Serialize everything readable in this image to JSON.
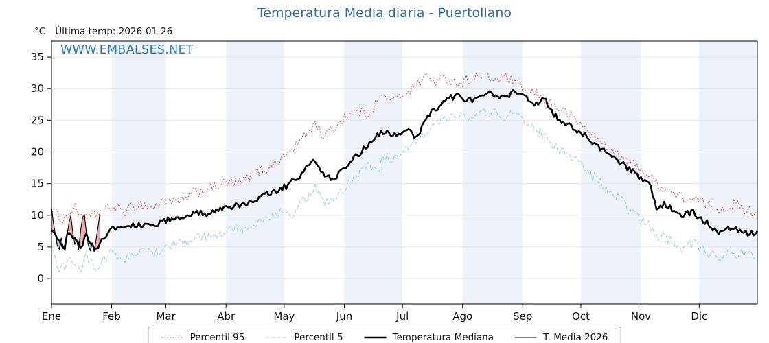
{
  "header": {
    "title": "Temperatura Media diaria - Puertollano",
    "unit_label": "°C",
    "last_temp_label": "Última temp: 2026-01-26",
    "watermark": "WWW.EMBALSES.NET"
  },
  "colors": {
    "title": "#2f6fa7",
    "watermark": "#2d7fc0",
    "band": "#edf3f9",
    "grid": "#e6e6e6",
    "axis": "#000000",
    "anomaly_above": "#e89999",
    "anomaly_below": "#9dbfdc"
  },
  "legend": {
    "items": [
      {
        "label": "Percentil 95"
      },
      {
        "label": "Percentil 5"
      },
      {
        "label": "Temperatura Mediana"
      },
      {
        "label": "T. Media 2026"
      }
    ]
  },
  "chart_data": {
    "type": "line",
    "title": "Temperatura Media diaria - Puertollano",
    "xlabel": "",
    "ylabel": "°C",
    "ylim": [
      -4,
      37.5
    ],
    "yticks": [
      0,
      5,
      10,
      15,
      20,
      25,
      30,
      35
    ],
    "x_months": [
      "Ene",
      "Feb",
      "Mar",
      "Abr",
      "May",
      "Jun",
      "Jul",
      "Ago",
      "Sep",
      "Oct",
      "Nov",
      "Dic"
    ],
    "month_start_days": [
      0,
      31,
      59,
      90,
      120,
      151,
      181,
      212,
      243,
      273,
      304,
      334
    ],
    "legend_position": "bottom",
    "grid": true,
    "series": [
      {
        "name": "Percentil 95",
        "color": "#d64545",
        "style": "dotted",
        "width": 1.1,
        "jitter": 0.85,
        "points": [
          [
            0,
            10.8
          ],
          [
            6,
            9.4
          ],
          [
            12,
            11.0
          ],
          [
            18,
            9.6
          ],
          [
            24,
            10.2
          ],
          [
            31,
            11.3
          ],
          [
            38,
            10.6
          ],
          [
            45,
            11.8
          ],
          [
            52,
            11.2
          ],
          [
            59,
            12.4
          ],
          [
            66,
            12.0
          ],
          [
            74,
            13.6
          ],
          [
            82,
            14.2
          ],
          [
            90,
            15.2
          ],
          [
            97,
            15.0
          ],
          [
            105,
            16.8
          ],
          [
            112,
            17.5
          ],
          [
            120,
            19.3
          ],
          [
            126,
            21.0
          ],
          [
            132,
            23.0
          ],
          [
            136,
            24.6
          ],
          [
            140,
            22.5
          ],
          [
            145,
            23.5
          ],
          [
            151,
            25.6
          ],
          [
            157,
            26.5
          ],
          [
            163,
            26.0
          ],
          [
            170,
            28.8
          ],
          [
            176,
            28.0
          ],
          [
            181,
            29.2
          ],
          [
            187,
            30.2
          ],
          [
            193,
            32.0
          ],
          [
            198,
            31.0
          ],
          [
            204,
            31.6
          ],
          [
            210,
            30.8
          ],
          [
            216,
            31.6
          ],
          [
            222,
            32.0
          ],
          [
            228,
            31.4
          ],
          [
            234,
            31.8
          ],
          [
            240,
            30.6
          ],
          [
            246,
            29.6
          ],
          [
            252,
            28.8
          ],
          [
            258,
            27.6
          ],
          [
            265,
            26.2
          ],
          [
            273,
            24.4
          ],
          [
            280,
            22.4
          ],
          [
            287,
            20.6
          ],
          [
            295,
            18.8
          ],
          [
            304,
            17.4
          ],
          [
            310,
            15.6
          ],
          [
            316,
            14.4
          ],
          [
            322,
            13.2
          ],
          [
            328,
            12.6
          ],
          [
            334,
            12.2
          ],
          [
            340,
            11.4
          ],
          [
            346,
            11.0
          ],
          [
            352,
            11.8
          ],
          [
            358,
            10.8
          ],
          [
            364,
            10.4
          ]
        ]
      },
      {
        "name": "Percentil 5",
        "color": "#a3cfe3",
        "style": "dashed",
        "width": 1.1,
        "jitter": 0.85,
        "points": [
          [
            0,
            4.6
          ],
          [
            3,
            2.0
          ],
          [
            6,
            1.2
          ],
          [
            9,
            3.4
          ],
          [
            12,
            2.4
          ],
          [
            15,
            1.4
          ],
          [
            18,
            3.6
          ],
          [
            21,
            2.2
          ],
          [
            24,
            1.8
          ],
          [
            27,
            3.2
          ],
          [
            31,
            4.0
          ],
          [
            38,
            3.0
          ],
          [
            45,
            4.4
          ],
          [
            52,
            4.0
          ],
          [
            59,
            5.0
          ],
          [
            66,
            5.6
          ],
          [
            74,
            6.2
          ],
          [
            82,
            6.6
          ],
          [
            90,
            7.0
          ],
          [
            95,
            8.4
          ],
          [
            100,
            7.4
          ],
          [
            105,
            8.8
          ],
          [
            112,
            9.6
          ],
          [
            118,
            10.4
          ],
          [
            124,
            9.8
          ],
          [
            130,
            12.4
          ],
          [
            136,
            14.4
          ],
          [
            141,
            12.0
          ],
          [
            147,
            13.0
          ],
          [
            151,
            14.2
          ],
          [
            157,
            16.2
          ],
          [
            163,
            18.2
          ],
          [
            168,
            17.4
          ],
          [
            173,
            19.2
          ],
          [
            178,
            18.6
          ],
          [
            183,
            20.2
          ],
          [
            188,
            21.8
          ],
          [
            193,
            23.4
          ],
          [
            198,
            24.6
          ],
          [
            204,
            25.4
          ],
          [
            210,
            26.2
          ],
          [
            215,
            25.0
          ],
          [
            220,
            25.8
          ],
          [
            226,
            26.4
          ],
          [
            232,
            25.6
          ],
          [
            238,
            26.0
          ],
          [
            243,
            25.2
          ],
          [
            249,
            23.6
          ],
          [
            254,
            22.6
          ],
          [
            259,
            21.0
          ],
          [
            265,
            19.6
          ],
          [
            273,
            18.0
          ],
          [
            280,
            16.0
          ],
          [
            287,
            13.6
          ],
          [
            295,
            12.0
          ],
          [
            300,
            10.2
          ],
          [
            304,
            9.2
          ],
          [
            308,
            8.4
          ],
          [
            312,
            6.4
          ],
          [
            316,
            6.8
          ],
          [
            321,
            5.4
          ],
          [
            326,
            4.8
          ],
          [
            331,
            5.6
          ],
          [
            334,
            4.8
          ],
          [
            339,
            4.0
          ],
          [
            344,
            3.2
          ],
          [
            349,
            4.4
          ],
          [
            354,
            3.6
          ],
          [
            359,
            4.6
          ],
          [
            364,
            3.2
          ]
        ]
      },
      {
        "name": "Temperatura Mediana",
        "color": "#000000",
        "style": "solid",
        "width": 2.6,
        "jitter": 0.5,
        "points": [
          [
            0,
            7.8
          ],
          [
            3,
            6.0
          ],
          [
            6,
            5.0
          ],
          [
            9,
            7.2
          ],
          [
            12,
            6.2
          ],
          [
            15,
            4.6
          ],
          [
            18,
            7.0
          ],
          [
            21,
            5.2
          ],
          [
            24,
            4.4
          ],
          [
            27,
            6.6
          ],
          [
            31,
            7.9
          ],
          [
            38,
            8.2
          ],
          [
            45,
            8.6
          ],
          [
            52,
            8.4
          ],
          [
            59,
            9.2
          ],
          [
            66,
            9.8
          ],
          [
            74,
            10.3
          ],
          [
            82,
            10.2
          ],
          [
            90,
            11.0
          ],
          [
            97,
            11.6
          ],
          [
            105,
            12.6
          ],
          [
            112,
            13.4
          ],
          [
            120,
            14.4
          ],
          [
            126,
            15.6
          ],
          [
            132,
            17.6
          ],
          [
            136,
            18.8
          ],
          [
            140,
            16.4
          ],
          [
            145,
            15.6
          ],
          [
            151,
            17.4
          ],
          [
            157,
            19.2
          ],
          [
            163,
            21.0
          ],
          [
            168,
            22.6
          ],
          [
            173,
            23.4
          ],
          [
            178,
            22.4
          ],
          [
            183,
            23.8
          ],
          [
            188,
            22.0
          ],
          [
            193,
            25.2
          ],
          [
            198,
            26.8
          ],
          [
            204,
            28.4
          ],
          [
            210,
            29.0
          ],
          [
            215,
            28.0
          ],
          [
            220,
            28.8
          ],
          [
            226,
            29.2
          ],
          [
            232,
            28.6
          ],
          [
            238,
            29.4
          ],
          [
            243,
            28.8
          ],
          [
            249,
            27.6
          ],
          [
            254,
            28.4
          ],
          [
            259,
            26.0
          ],
          [
            265,
            24.4
          ],
          [
            273,
            23.0
          ],
          [
            280,
            21.4
          ],
          [
            287,
            19.8
          ],
          [
            295,
            18.0
          ],
          [
            300,
            16.8
          ],
          [
            304,
            15.8
          ],
          [
            308,
            15.2
          ],
          [
            312,
            11.4
          ],
          [
            316,
            11.8
          ],
          [
            321,
            10.6
          ],
          [
            326,
            10.0
          ],
          [
            331,
            10.6
          ],
          [
            334,
            9.6
          ],
          [
            339,
            8.6
          ],
          [
            344,
            7.2
          ],
          [
            349,
            8.0
          ],
          [
            354,
            7.7
          ],
          [
            359,
            7.2
          ],
          [
            364,
            7.0
          ]
        ]
      },
      {
        "name": "T. Media 2026",
        "color": "#000000",
        "style": "solid",
        "width": 1.1,
        "jitter": 0,
        "points": [
          [
            0,
            11.2
          ],
          [
            1,
            8.8
          ],
          [
            2,
            7.0
          ],
          [
            3,
            5.2
          ],
          [
            4,
            4.6
          ],
          [
            5,
            6.4
          ],
          [
            6,
            5.0
          ],
          [
            7,
            4.4
          ],
          [
            8,
            6.8
          ],
          [
            9,
            8.8
          ],
          [
            10,
            9.9
          ],
          [
            11,
            7.2
          ],
          [
            12,
            5.4
          ],
          [
            13,
            6.0
          ],
          [
            14,
            4.6
          ],
          [
            15,
            7.6
          ],
          [
            16,
            9.6
          ],
          [
            17,
            10.1
          ],
          [
            18,
            7.2
          ],
          [
            19,
            5.2
          ],
          [
            20,
            4.4
          ],
          [
            21,
            5.6
          ],
          [
            22,
            4.2
          ],
          [
            23,
            6.2
          ],
          [
            24,
            8.2
          ],
          [
            25,
            10.4
          ]
        ]
      }
    ],
    "anomaly_fill": {
      "above": "#e89999",
      "below": "#9dbfdc",
      "compare_series": "Temperatura Mediana",
      "target_series": "T. Media 2026"
    }
  }
}
